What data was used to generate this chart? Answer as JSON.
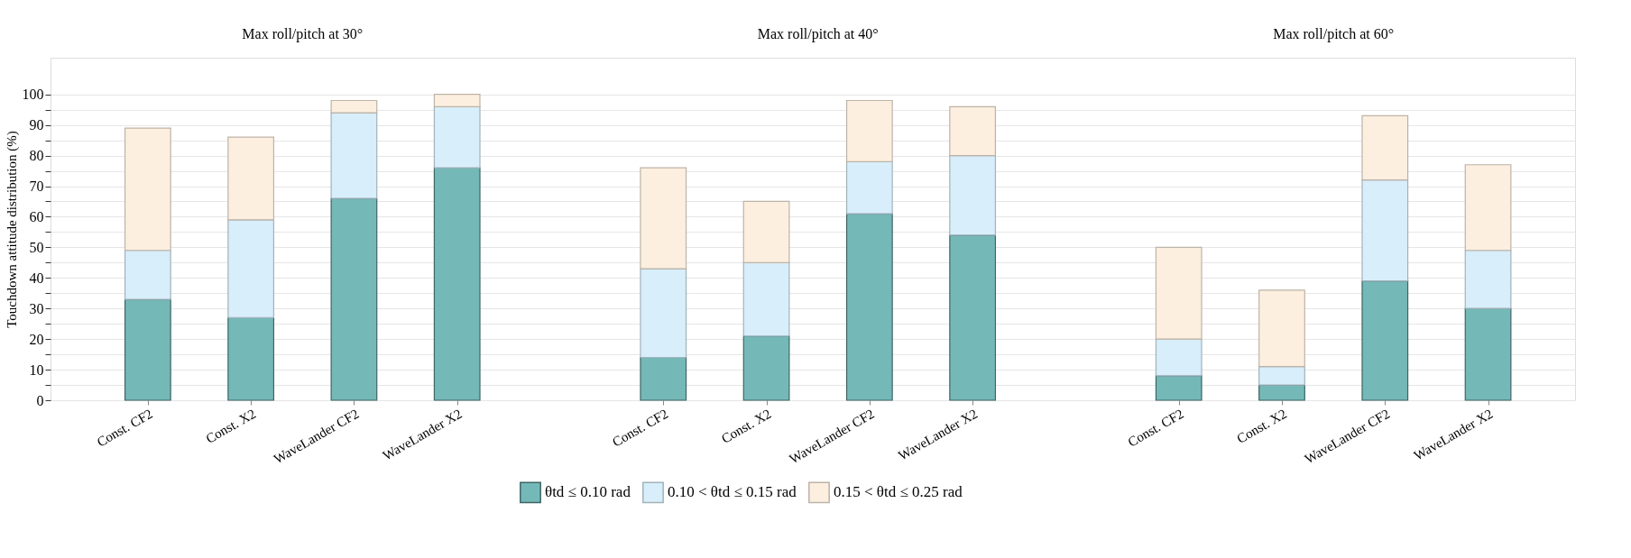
{
  "chart_data": {
    "type": "bar",
    "stacked": true,
    "ylabel": "Touchdown attitude distribution (%)",
    "categories": [
      "Const. CF2",
      "Const. X2",
      "WaveLander CF2",
      "WaveLander X2",
      "Const. CF2",
      "Const. X2",
      "WaveLander CF2",
      "WaveLander X2",
      "Const. CF2",
      "Const. X2",
      "WaveLander CF2",
      "WaveLander X2"
    ],
    "series": [
      {
        "name": "θtd ≤ 0.10 rad",
        "color": "#74b9b8",
        "values": [
          33,
          27,
          66,
          76,
          14,
          21,
          61,
          54,
          8,
          5,
          39,
          30
        ]
      },
      {
        "name": "0.10 < θtd ≤ 0.15 rad",
        "color": "#d8eefa",
        "values": [
          16,
          32,
          28,
          20,
          29,
          24,
          17,
          26,
          12,
          6,
          33,
          19
        ]
      },
      {
        "name": "0.15 < θtd ≤ 0.25 rad",
        "color": "#fdefdf",
        "values": [
          40,
          27,
          4,
          4,
          33,
          20,
          20,
          16,
          30,
          25,
          21,
          28
        ]
      }
    ],
    "annotations": [
      "Max roll/pitch at 30°",
      "Max roll/pitch at 40°",
      "Max roll/pitch at 60°"
    ],
    "ylim": [
      0,
      112
    ],
    "yticks": [
      0,
      {
        "value": 5,
        "label": null
      },
      10,
      {
        "value": 15,
        "label": null
      },
      20,
      {
        "value": 25,
        "label": null
      },
      30,
      {
        "value": 35,
        "label": null
      },
      40,
      {
        "value": 45,
        "label": null
      },
      50,
      {
        "value": 55,
        "label": null
      },
      60,
      {
        "value": 65,
        "label": null
      },
      70,
      {
        "value": 75,
        "label": null
      },
      80,
      {
        "value": 85,
        "label": null
      },
      90,
      {
        "value": 95,
        "label": null
      },
      100
    ],
    "grid": "y",
    "legend": "bottom"
  }
}
